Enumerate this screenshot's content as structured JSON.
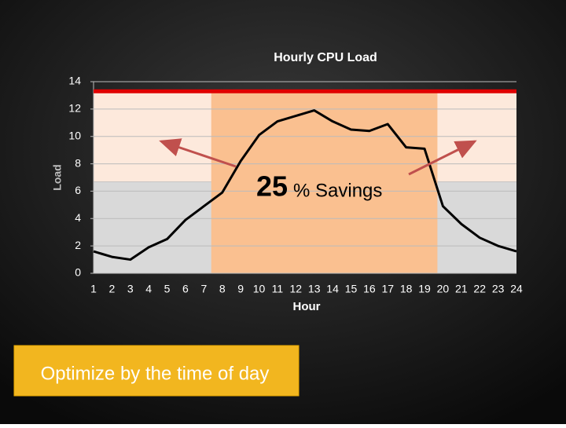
{
  "chart_data": {
    "type": "line",
    "title": "Hourly CPU Load",
    "x_label": "Hour",
    "y_label": "Load",
    "x": [
      1,
      2,
      3,
      4,
      5,
      6,
      7,
      8,
      9,
      10,
      11,
      12,
      13,
      14,
      15,
      16,
      17,
      18,
      19,
      20,
      21,
      22,
      23,
      24
    ],
    "values": [
      1.6,
      1.2,
      1.0,
      1.9,
      2.5,
      3.9,
      4.9,
      5.9,
      8.2,
      10.1,
      11.1,
      11.5,
      11.9,
      11.1,
      10.5,
      10.4,
      10.9,
      9.2,
      9.1,
      4.9,
      3.6,
      2.6,
      2.0,
      1.6
    ],
    "color": "#000000",
    "xlim": [
      1,
      24
    ],
    "xticks": [
      1,
      2,
      3,
      4,
      5,
      6,
      7,
      8,
      9,
      10,
      11,
      12,
      13,
      14,
      15,
      16,
      17,
      18,
      19,
      20,
      21,
      22,
      23,
      24
    ],
    "ylim": [
      0,
      14
    ],
    "yticks": [
      0,
      2,
      4,
      6,
      8,
      10,
      12,
      14
    ],
    "grid": true,
    "reference_line": {
      "value": 13.3,
      "color": "#e00000"
    },
    "shading": {
      "x_range": [
        7.4,
        19.7
      ],
      "baseline": 6.7,
      "center_color": "#fac090",
      "upper_color": "#fde9dc",
      "lower_color": "#d9d9d9"
    },
    "annotation": {
      "number": "25",
      "text": "% Savings"
    }
  },
  "footer": {
    "text": "Optimize by the time of day"
  }
}
